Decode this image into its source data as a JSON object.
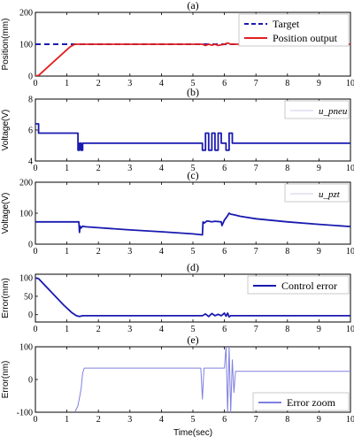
{
  "figure": {
    "xlabel": "Time(sec)"
  },
  "chart_data": [
    {
      "type": "line",
      "title": "(a)",
      "ylabel": "Position(mm)",
      "xlim": [
        0,
        10
      ],
      "ylim": [
        0,
        200
      ],
      "xticks": [
        "0",
        "1",
        "2",
        "3",
        "4",
        "5",
        "6",
        "7",
        "8",
        "9",
        "10"
      ],
      "yticks": [
        "0",
        "100",
        "200"
      ],
      "legend": {
        "placement": "top-right",
        "boxed": true,
        "entries": [
          {
            "label": "Target",
            "color": "#1a1ab0",
            "style": "dashed"
          },
          {
            "label": "Position output",
            "color": "#e02020",
            "style": "solid"
          }
        ]
      },
      "series": [
        {
          "name": "Target",
          "color": "#1a1ab0",
          "dashed": true,
          "x": [
            0,
            10
          ],
          "y": [
            100,
            100
          ]
        },
        {
          "name": "Position output",
          "color": "#e02020",
          "x": [
            0,
            0.1,
            0.3,
            0.6,
            0.9,
            1.1,
            1.25,
            1.35,
            1.5,
            5.2,
            5.3,
            5.4,
            5.5,
            5.6,
            5.7,
            5.8,
            6.0,
            6.1,
            6.2,
            6.3,
            10
          ],
          "y": [
            0,
            2,
            20,
            47,
            74,
            92,
            100,
            100,
            100,
            100,
            100,
            96,
            100,
            97,
            100,
            96,
            100,
            104,
            100,
            100,
            100
          ]
        }
      ]
    },
    {
      "type": "line",
      "title": "(b)",
      "ylabel": "Voltage(V)",
      "xlim": [
        0,
        10
      ],
      "ylim": [
        4,
        8
      ],
      "xticks": [
        "0",
        "1",
        "2",
        "3",
        "4",
        "5",
        "6",
        "7",
        "8",
        "9",
        "10"
      ],
      "yticks": [
        "4",
        "6",
        "8"
      ],
      "legend": {
        "placement": "top-right",
        "boxed": true,
        "entries": [
          {
            "label": "u_pneu",
            "color": "#1a1ab0"
          }
        ]
      },
      "series": [
        {
          "name": "u_pneu",
          "color": "#1a1ab0",
          "x": [
            0,
            0.1,
            0.1,
            1.35,
            1.35,
            1.4,
            1.4,
            1.45,
            1.45,
            1.5,
            1.5,
            1.55,
            1.55,
            5.3,
            5.3,
            5.4,
            5.4,
            5.5,
            5.5,
            5.6,
            5.6,
            5.7,
            5.7,
            5.8,
            5.8,
            5.9,
            5.9,
            6.05,
            6.05,
            6.15,
            6.15,
            6.25,
            6.25,
            10
          ],
          "y": [
            6.4,
            6.4,
            5.8,
            5.8,
            4.7,
            4.7,
            5.15,
            5.15,
            4.7,
            4.7,
            5.15,
            5.15,
            5.15,
            5.15,
            4.7,
            4.7,
            5.8,
            5.8,
            4.7,
            4.7,
            5.8,
            5.8,
            4.7,
            4.7,
            5.8,
            5.8,
            5.15,
            5.15,
            4.7,
            4.7,
            5.8,
            5.8,
            5.15,
            5.15
          ]
        }
      ]
    },
    {
      "type": "line",
      "title": "(c)",
      "ylabel": "Voltage(V)",
      "xlim": [
        0,
        10
      ],
      "ylim": [
        0,
        200
      ],
      "xticks": [
        "0",
        "1",
        "2",
        "3",
        "4",
        "5",
        "6",
        "7",
        "8",
        "9",
        "10"
      ],
      "yticks": [
        "0",
        "100",
        "200"
      ],
      "legend": {
        "placement": "top-right",
        "boxed": true,
        "entries": [
          {
            "label": "u_pzt",
            "color": "#1a1ab0"
          }
        ]
      },
      "series": [
        {
          "name": "u_pzt",
          "color": "#1a1ab0",
          "x": [
            0,
            1.38,
            1.4,
            1.42,
            1.45,
            1.5,
            1.6,
            2,
            3,
            4,
            5,
            5.3,
            5.32,
            5.35,
            5.45,
            5.6,
            5.7,
            5.9,
            5.92,
            6.0,
            6.05,
            6.1,
            6.15,
            6.2,
            6.3,
            6.5,
            7,
            8,
            9,
            10
          ],
          "y": [
            72,
            72,
            38,
            58,
            52,
            58,
            56,
            53,
            46,
            40,
            33,
            30,
            72,
            68,
            75,
            72,
            74,
            72,
            60,
            78,
            85,
            92,
            100,
            97,
            95,
            90,
            82,
            72,
            64,
            57
          ]
        }
      ]
    },
    {
      "type": "line",
      "title": "(d)",
      "ylabel": "Error(mm)",
      "xlim": [
        0,
        10
      ],
      "ylim": [
        -20,
        110
      ],
      "xticks": [
        "0",
        "1",
        "2",
        "3",
        "4",
        "5",
        "6",
        "7",
        "8",
        "9",
        "10"
      ],
      "yticks": [
        "0",
        "50",
        "100"
      ],
      "legend": {
        "placement": "top-right",
        "boxed": true,
        "entries": [
          {
            "label": "Control error",
            "color": "#1a1ab0"
          }
        ]
      },
      "series": [
        {
          "name": "Control error",
          "color": "#1a1ab0",
          "x": [
            0,
            0.1,
            0.3,
            0.6,
            0.9,
            1.15,
            1.3,
            1.4,
            1.5,
            1.6,
            5.3,
            5.4,
            5.5,
            5.6,
            5.7,
            5.8,
            5.9,
            6.0,
            6.05,
            6.1,
            6.15,
            6.2,
            6.3,
            10
          ],
          "y": [
            100,
            98,
            80,
            53,
            26,
            6,
            -3,
            -5,
            -3,
            -3,
            -3,
            2,
            -5,
            3,
            -3,
            1,
            -3,
            4,
            -4,
            4,
            -6,
            -3,
            -3,
            -3
          ]
        }
      ]
    },
    {
      "type": "line",
      "title": "(e)",
      "ylabel": "Error(nm)",
      "xlim": [
        0,
        10
      ],
      "ylim": [
        -100,
        100
      ],
      "xticks": [
        "0",
        "1",
        "2",
        "3",
        "4",
        "5",
        "6",
        "7",
        "8",
        "9",
        "10"
      ],
      "yticks": [
        "-100",
        "0",
        "100"
      ],
      "legend": {
        "placement": "bottom-right",
        "boxed": true,
        "entries": [
          {
            "label": "Error zoom",
            "color": "#8080e0"
          }
        ]
      },
      "series": [
        {
          "name": "Error zoom",
          "color": "#8080e0",
          "x": [
            1.25,
            1.35,
            1.45,
            1.5,
            1.55,
            1.6,
            5.25,
            5.3,
            5.35,
            6.0,
            6.05,
            6.1,
            6.15,
            6.2,
            6.25,
            6.3,
            6.35,
            6.5,
            10
          ],
          "y": [
            -100,
            -80,
            -30,
            20,
            35,
            35,
            35,
            -60,
            35,
            35,
            100,
            -100,
            100,
            -100,
            60,
            -40,
            25,
            25,
            25
          ]
        }
      ]
    }
  ]
}
